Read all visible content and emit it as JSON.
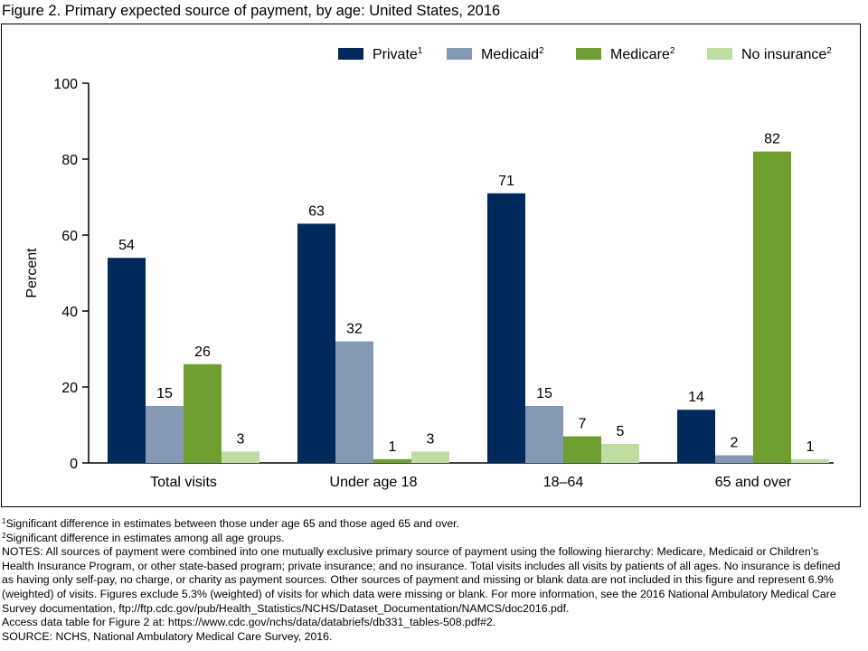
{
  "title": "Figure 2. Primary expected source of payment, by age: United States, 2016",
  "chart_data": {
    "type": "bar",
    "title": "Figure 2. Primary expected source of payment, by age: United States, 2016",
    "xlabel": "",
    "ylabel": "Percent",
    "ylim": [
      0,
      100
    ],
    "yticks": [
      0,
      20,
      40,
      60,
      80,
      100
    ],
    "grid": false,
    "legend_position": "top-right",
    "categories": [
      "Total visits",
      "Under age 18",
      "18–64",
      "65 and over"
    ],
    "series": [
      {
        "name": "Private",
        "sup": "1",
        "color": "#002a5c",
        "values": [
          54,
          63,
          71,
          14
        ]
      },
      {
        "name": "Medicaid",
        "sup": "2",
        "color": "#8599b5",
        "values": [
          15,
          32,
          15,
          2
        ]
      },
      {
        "name": "Medicare",
        "sup": "2",
        "color": "#6e9e2f",
        "values": [
          26,
          1,
          7,
          82
        ]
      },
      {
        "name": "No insurance",
        "sup": "2",
        "color": "#bfdca2",
        "values": [
          3,
          3,
          5,
          1
        ]
      }
    ]
  },
  "footnotes": {
    "note1_sup": "1",
    "note1": "Significant difference in estimates between those under age 65 and those aged 65 and over.",
    "note2_sup": "2",
    "note2": "Significant difference in estimates among all age groups.",
    "notes": "NOTES: All sources of payment were combined into one mutually exclusive primary source of payment using the following hierarchy: Medicare, Medicaid or Children’s Health Insurance Program, or other state-based program; private insurance; and no insurance. Total visits includes all visits by patients of all ages. No insurance is defined as having only self-pay, no charge, or charity as payment sources. Other sources of payment and missing or blank data are not included in this figure and represent 6.9% (weighted) of visits. Figures exclude 5.3% (weighted) of visits for which data were missing or blank. For more information, see the 2016 National Ambulatory Medical Care Survey documentation, ftp://ftp.cdc.gov/pub/Health_Statistics/NCHS/Dataset_Documentation/NAMCS/doc2016.pdf.",
    "access": "Access data table for Figure 2 at: https://www.cdc.gov/nchs/data/databriefs/db331_tables-508.pdf#2.",
    "source": "SOURCE: NCHS, National Ambulatory Medical Care Survey, 2016."
  }
}
